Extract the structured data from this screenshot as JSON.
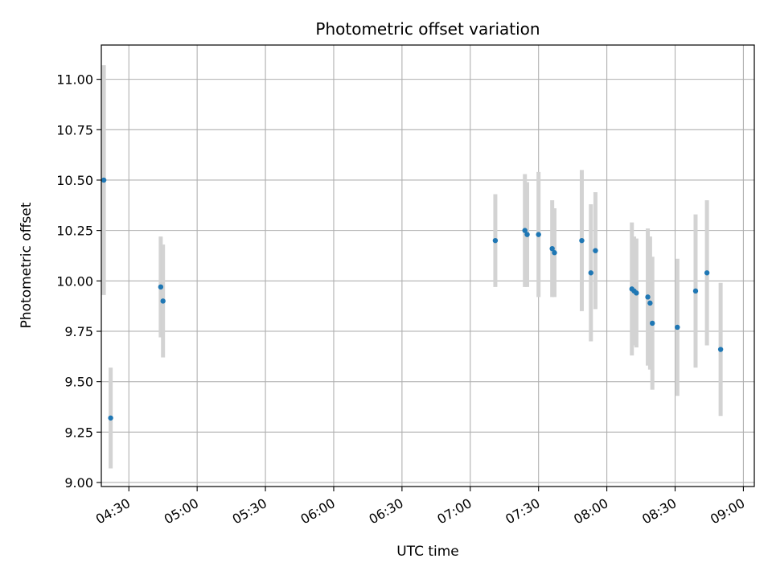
{
  "chart_data": {
    "type": "scatter",
    "title": "Photometric offset variation",
    "xlabel": "UTC time",
    "ylabel": "Photometric offset",
    "xlim": [
      "04:19",
      "09:04"
    ],
    "ylim": [
      8.98,
      11.17
    ],
    "x_ticks": [
      "04:30",
      "05:00",
      "05:30",
      "06:00",
      "06:30",
      "07:00",
      "07:30",
      "08:00",
      "08:30",
      "09:00"
    ],
    "y_ticks": [
      "9.00",
      "9.25",
      "9.50",
      "9.75",
      "10.00",
      "10.25",
      "10.50",
      "10.75",
      "11.00"
    ],
    "grid": true,
    "colors": {
      "point": "#1f77b4",
      "errorbar": "#d3d3d3",
      "grid": "#b0b0b0"
    },
    "series": [
      {
        "points": [
          {
            "x": "04:19",
            "y": 10.5,
            "err": 0.57
          },
          {
            "x": "04:22",
            "y": 9.32,
            "err": 0.25
          },
          {
            "x": "04:44",
            "y": 9.97,
            "err": 0.25
          },
          {
            "x": "04:45",
            "y": 9.9,
            "err": 0.28
          },
          {
            "x": "07:11",
            "y": 10.2,
            "err": 0.23
          },
          {
            "x": "07:24",
            "y": 10.25,
            "err": 0.28
          },
          {
            "x": "07:25",
            "y": 10.23,
            "err": 0.26
          },
          {
            "x": "07:30",
            "y": 10.23,
            "err": 0.31
          },
          {
            "x": "07:36",
            "y": 10.16,
            "err": 0.24
          },
          {
            "x": "07:37",
            "y": 10.14,
            "err": 0.22
          },
          {
            "x": "07:49",
            "y": 10.2,
            "err": 0.35
          },
          {
            "x": "07:53",
            "y": 10.04,
            "err": 0.34
          },
          {
            "x": "07:55",
            "y": 10.15,
            "err": 0.29
          },
          {
            "x": "08:11",
            "y": 9.96,
            "err": 0.33
          },
          {
            "x": "08:12",
            "y": 9.95,
            "err": 0.27
          },
          {
            "x": "08:13",
            "y": 9.94,
            "err": 0.27
          },
          {
            "x": "08:18",
            "y": 9.92,
            "err": 0.34
          },
          {
            "x": "08:19",
            "y": 9.89,
            "err": 0.33
          },
          {
            "x": "08:20",
            "y": 9.79,
            "err": 0.33
          },
          {
            "x": "08:31",
            "y": 9.77,
            "err": 0.34
          },
          {
            "x": "08:39",
            "y": 9.95,
            "err": 0.38
          },
          {
            "x": "08:44",
            "y": 10.04,
            "err": 0.36
          },
          {
            "x": "08:50",
            "y": 9.66,
            "err": 0.33
          }
        ]
      }
    ]
  }
}
